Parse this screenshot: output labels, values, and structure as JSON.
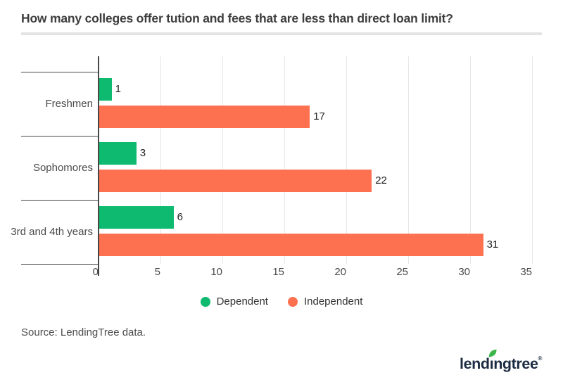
{
  "title": "How many colleges offer tution and fees that are less than direct loan limit?",
  "source_note": "Source: LendingTree data.",
  "logo": {
    "part1": "lend",
    "dotless_i": "ı",
    "part2": "ngtree",
    "mark": "®",
    "leaf_color": "#3cb54b",
    "text_color": "#1b2b41"
  },
  "colors": {
    "dependent": "#0dba70",
    "independent": "#fe7150",
    "axis": "#474747",
    "gridline": "#e7e7e7",
    "title_text": "#3d3d3d",
    "label_text": "#4a4a4a"
  },
  "legend": [
    {
      "label": "Dependent",
      "color": "#0dba70"
    },
    {
      "label": "Independent",
      "color": "#fe7150"
    }
  ],
  "chart_data": {
    "type": "bar",
    "orientation": "horizontal",
    "title": "How many colleges offer tution and fees that are less than direct loan limit?",
    "categories": [
      "Freshmen",
      "Sophomores",
      "3rd and 4th years"
    ],
    "series": [
      {
        "name": "Dependent",
        "color": "#0dba70",
        "values": [
          1,
          3,
          6
        ]
      },
      {
        "name": "Independent",
        "color": "#fe7150",
        "values": [
          17,
          22,
          31
        ]
      }
    ],
    "xlabel": "",
    "ylabel": "",
    "xlim": [
      0,
      35
    ],
    "xticks": [
      0,
      5,
      10,
      15,
      20,
      25,
      30,
      35
    ],
    "grid": true,
    "legend_position": "bottom",
    "value_labels": true
  }
}
